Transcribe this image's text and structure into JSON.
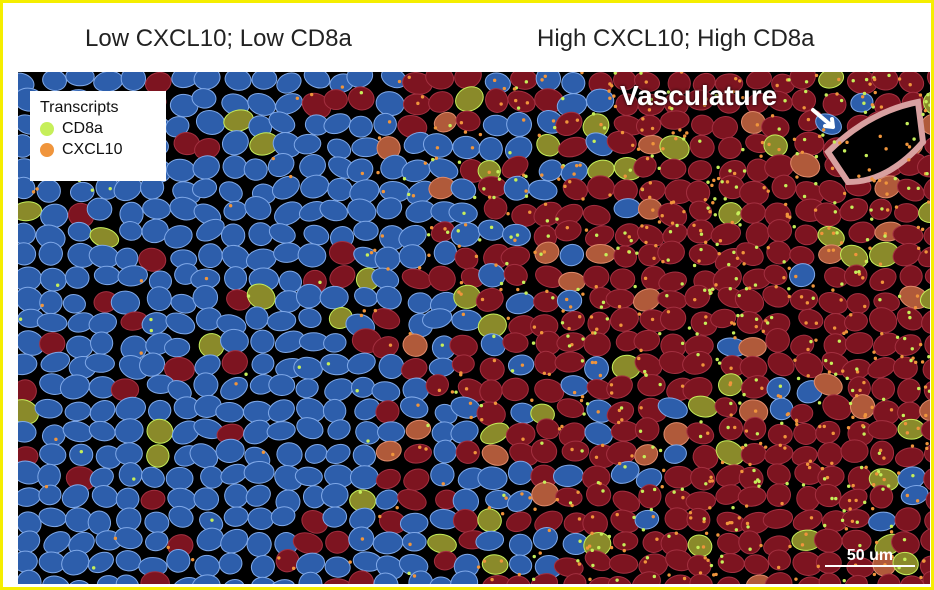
{
  "header": {
    "left_title": "Low CXCL10; Low CD8a",
    "right_title": "High CXCL10; High CD8a"
  },
  "legend": {
    "title": "Transcripts",
    "items": [
      {
        "label": "CD8a",
        "color": "#c6ef5a"
      },
      {
        "label": "CXCL10",
        "color": "#f0953c"
      }
    ]
  },
  "annotation": "Vasculature",
  "scale_bar": "50 um"
}
